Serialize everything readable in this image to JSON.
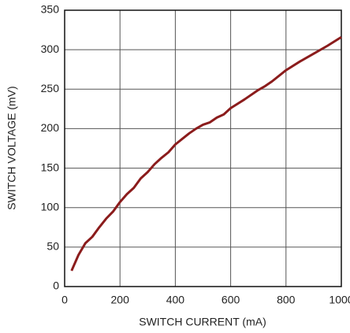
{
  "chart_data": {
    "type": "line",
    "x_label": "SWITCH CURRENT (mA)",
    "y_label": "SWITCH VOLTAGE (mV)",
    "x": [
      25,
      50,
      75,
      100,
      125,
      150,
      175,
      200,
      225,
      250,
      275,
      300,
      325,
      350,
      375,
      400,
      425,
      450,
      475,
      500,
      525,
      550,
      575,
      600,
      650,
      700,
      725,
      750,
      800,
      850,
      900,
      950,
      1000
    ],
    "series": [
      {
        "color": "#8b1c1c",
        "values": [
          20,
          40,
          55,
          63,
          75,
          86,
          95,
          107,
          117,
          125,
          137,
          145,
          155,
          163,
          170,
          180,
          187,
          194,
          200,
          205,
          208,
          214,
          218,
          226,
          237,
          249,
          254,
          260,
          274,
          285,
          295,
          305,
          316
        ]
      }
    ],
    "xlim": [
      0,
      1000
    ],
    "xticks": [
      0,
      200,
      400,
      600,
      800,
      1000
    ],
    "ylim": [
      0,
      350
    ],
    "yticks": [
      0,
      50,
      100,
      150,
      200,
      250,
      300,
      350
    ],
    "grid": true
  }
}
